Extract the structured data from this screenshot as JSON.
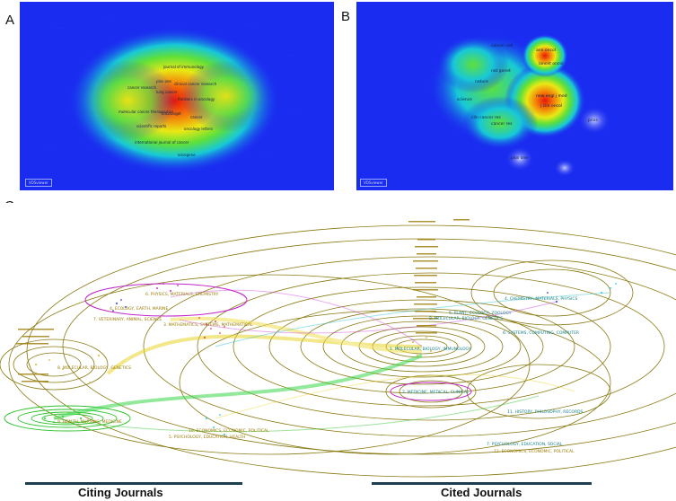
{
  "panels": {
    "a": {
      "letter": "A",
      "labels": [
        "journal of immunology",
        "clinical cancer research",
        "lung cancer",
        "cancer research",
        "plos one",
        "oncotarget",
        "frontiers in oncology",
        "molecular cancer therapeutics",
        "oncology letters",
        "scientific reports",
        "international journal of cancer",
        "cancer",
        "oncogene"
      ],
      "badge": "VOSviewer"
    },
    "b": {
      "letter": "B",
      "labels": [
        "new engl j med",
        "j clin oncol",
        "cancer res",
        "lancet oncol",
        "nature",
        "ann oncol",
        "clin cancer res",
        "plos one",
        "cancer cell",
        "science",
        "nat genet",
        "pnas"
      ],
      "badge": "VOSviewer"
    },
    "c": {
      "letter": "C",
      "cluster_labels": [
        "1. MOLECULAR, BIOLOGY, IMMUNOLOGY",
        "2. MEDICINE, MEDICAL, CLINICAL",
        "3. MATHEMATICS, SYSTEMS, MATHEMATICAL",
        "4. ECOLOGY, EARTH, MARINE",
        "5. PSYCHOLOGY, EDUCATION, HEALTH",
        "6. PHYSICS, MATERIALS, CHEMISTRY",
        "7. VETERINARY, ANIMAL, SCIENCE",
        "8. MOLECULAR, BIOLOGY, GENETICS",
        "9. HEALTH, NURSING, MEDICINE",
        "10. ECONOMICS, ECONOMIC, POLITICAL",
        "4. CHEMISTRY, MATERIALS, PHYSICS",
        "5. PLANT, ECOLOGY, ZOOLOGY",
        "6. SYSTEMS, COMPUTING, COMPUTER",
        "7. PSYCHOLOGY, EDUCATION, SOCIAL",
        "8. MOLECULAR, BIOLOGY, GENETICS",
        "11. HISTORY, PHILOSOPHY, RECORDS",
        "12. ECONOMICS, ECONOMIC, POLITICAL"
      ]
    }
  },
  "footer": {
    "citing": "Citing Journals",
    "cited": "Cited Journals"
  },
  "colors": {
    "heat_bg": "#1a2cf0",
    "overlay_ring": "#8a7a12",
    "label_gold": "#9a7a00",
    "label_teal": "#17838a"
  }
}
